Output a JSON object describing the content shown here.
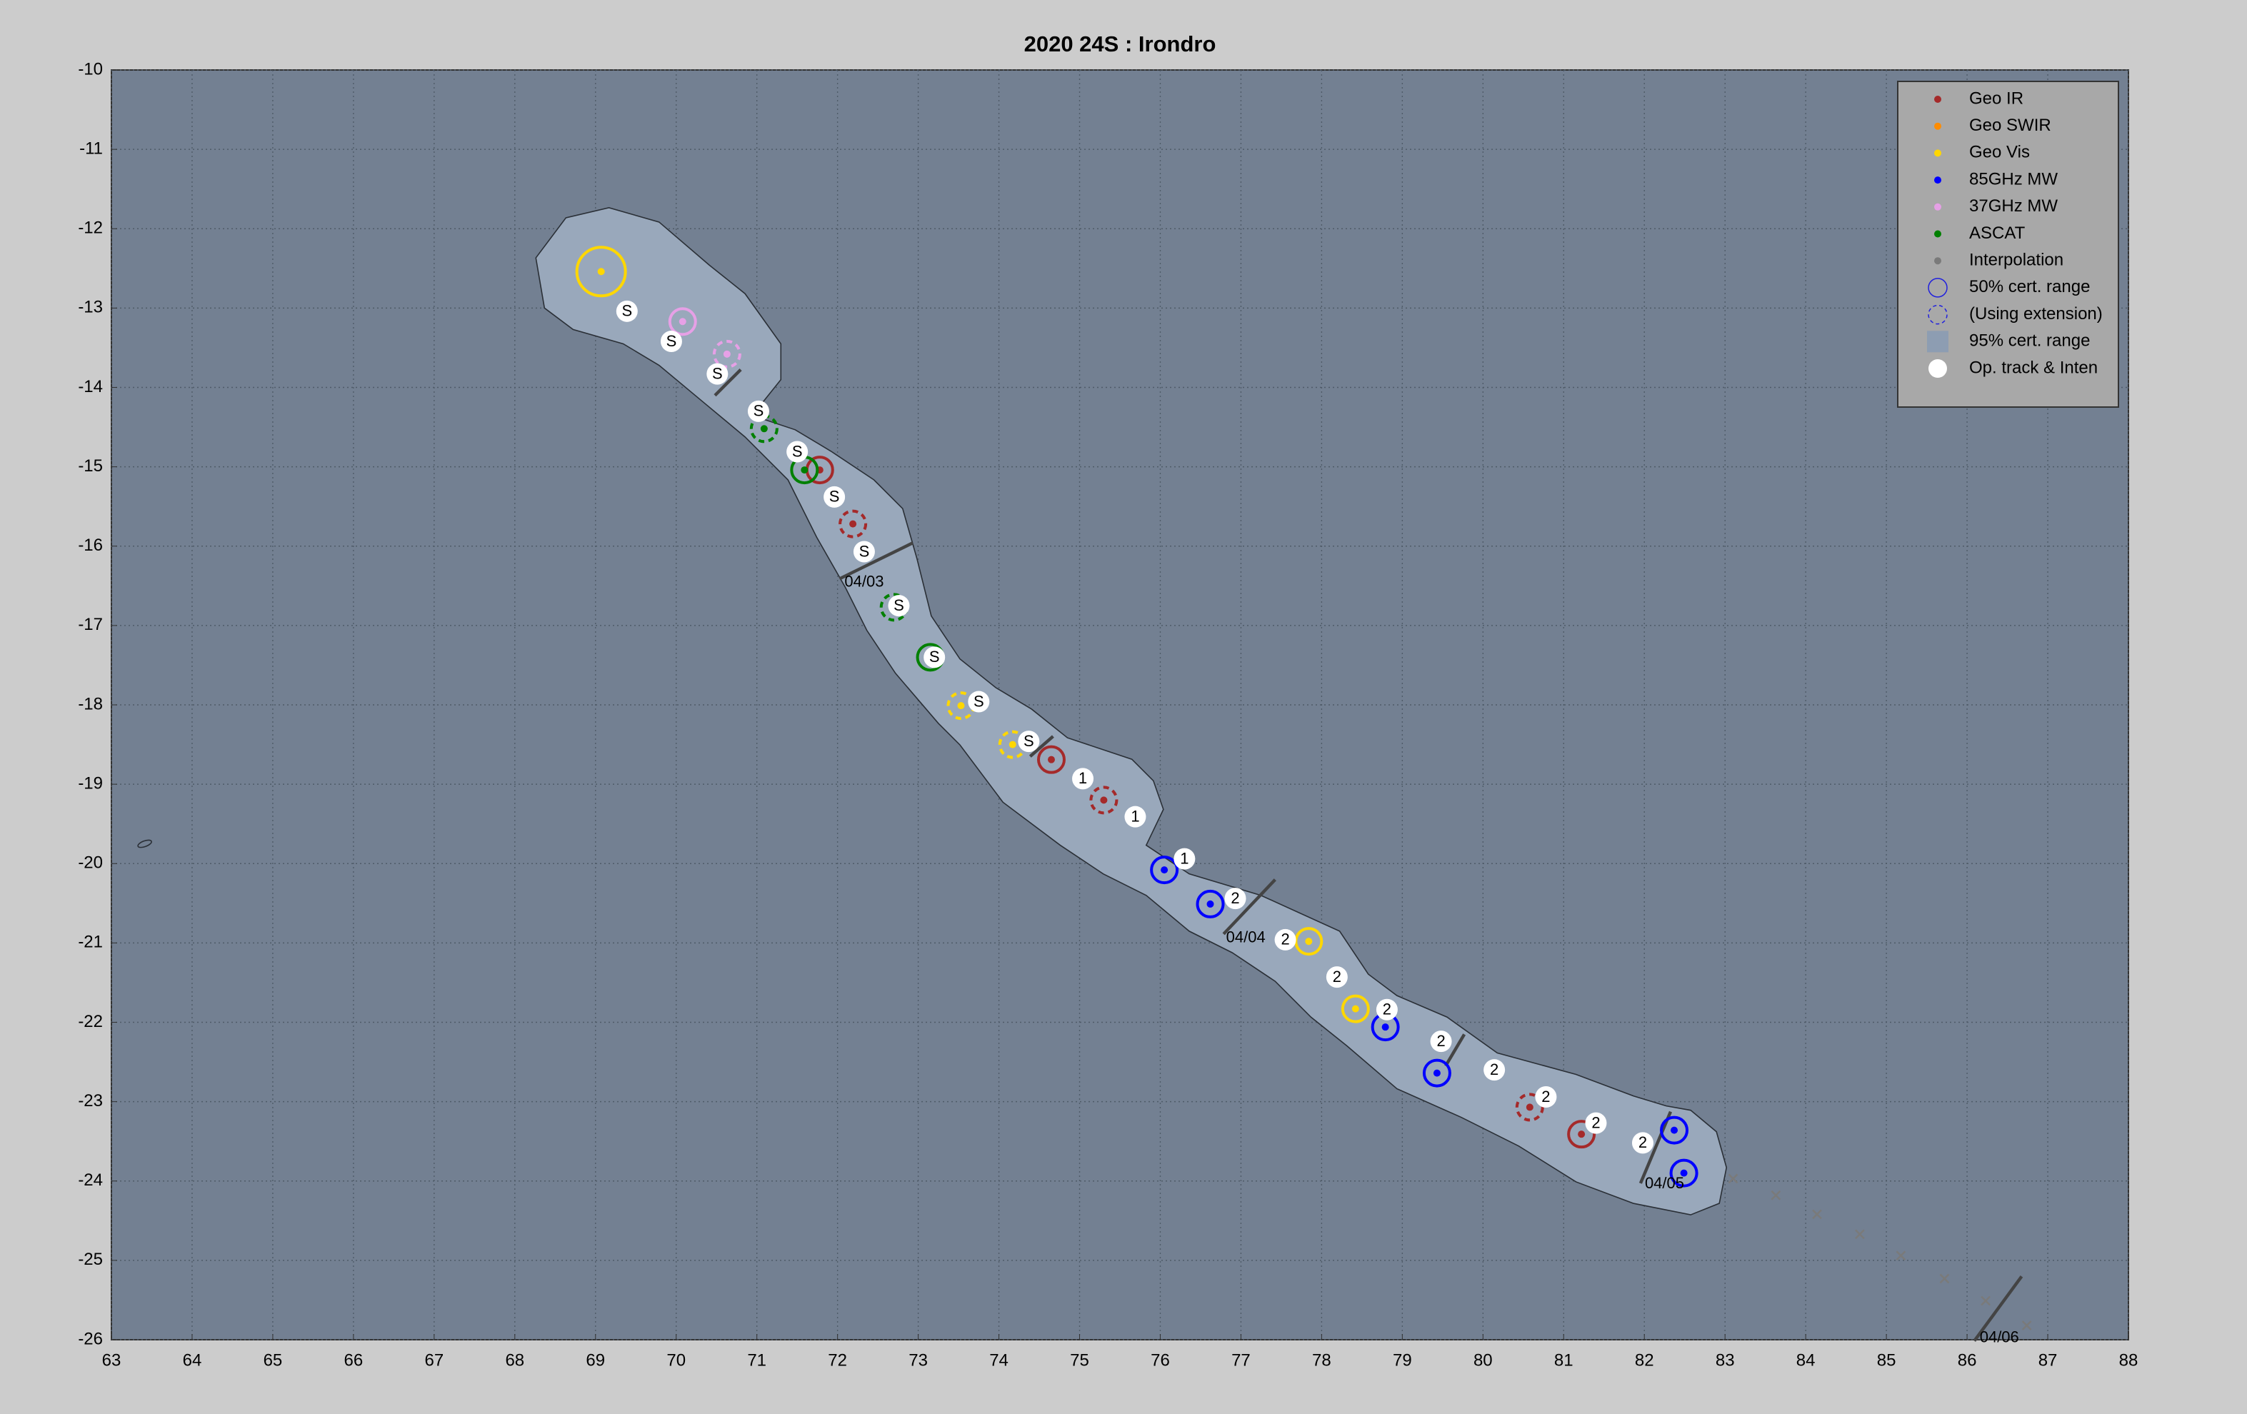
{
  "chart_data": {
    "type": "scatter",
    "title": "2020  24S :  Irondro",
    "xlim": [
      63,
      88
    ],
    "xticks": [
      63,
      64,
      65,
      66,
      67,
      68,
      69,
      70,
      71,
      72,
      73,
      74,
      75,
      76,
      77,
      78,
      79,
      80,
      81,
      82,
      83,
      84,
      85,
      86,
      87,
      88
    ],
    "ylim": [
      -26,
      -10
    ],
    "yticks": [
      -10,
      -11,
      -12,
      -13,
      -14,
      -15,
      -16,
      -17,
      -18,
      -19,
      -20,
      -21,
      -22,
      -23,
      -24,
      -25,
      -26
    ],
    "grid": true,
    "legend": "upper right",
    "series": [
      {
        "name": "Geo IR",
        "color": "#a52a2a",
        "marker": "circle",
        "x": [
          71.78,
          72.19,
          74.65,
          75.3,
          80.58,
          81.22
        ],
        "y": [
          -15.04,
          -15.72,
          -18.69,
          -19.2,
          -23.07,
          -23.41
        ],
        "extension": [
          false,
          true,
          false,
          true,
          true,
          false
        ]
      },
      {
        "name": "Geo SWIR",
        "color": "#ff8c00",
        "marker": "circle",
        "x": [],
        "y": [],
        "extension": []
      },
      {
        "name": "Geo Vis",
        "color": "#ffd700",
        "marker": "circle",
        "x": [
          69.07,
          73.53,
          74.17,
          77.84,
          78.42
        ],
        "y": [
          -12.54,
          -18.01,
          -18.5,
          -20.98,
          -21.83
        ],
        "extension": [
          false,
          true,
          true,
          false,
          false
        ]
      },
      {
        "name": "85GHz MW",
        "color": "#0000ff",
        "marker": "circle",
        "x": [
          76.05,
          76.62,
          78.79,
          79.43,
          82.37,
          82.49
        ],
        "y": [
          -20.08,
          -20.51,
          -22.06,
          -22.64,
          -23.36,
          -23.9
        ],
        "extension": [
          false,
          false,
          false,
          false,
          false,
          false
        ]
      },
      {
        "name": "37GHz MW",
        "color": "#e6a0e6",
        "marker": "circle",
        "x": [
          70.08,
          70.63
        ],
        "y": [
          -13.17,
          -13.58
        ],
        "extension": [
          false,
          true
        ]
      },
      {
        "name": "ASCAT",
        "color": "#008000",
        "marker": "circle",
        "x": [
          71.09,
          71.59,
          72.7,
          73.15
        ],
        "y": [
          -14.52,
          -15.04,
          -16.77,
          -17.4
        ],
        "extension": [
          true,
          false,
          true,
          false
        ]
      },
      {
        "name": "Interpolation",
        "color": "#7a7a7a",
        "marker": "x",
        "x": [
          83.1,
          83.63,
          84.14,
          84.67,
          85.18,
          85.72,
          86.23,
          86.74
        ],
        "y": [
          -23.97,
          -24.18,
          -24.42,
          -24.67,
          -24.94,
          -25.23,
          -25.51,
          -25.82
        ],
        "extension": [
          false,
          false,
          false,
          false,
          false,
          false,
          false,
          false
        ]
      }
    ],
    "legend_extra": [
      "50% cert. range",
      "(Using extension)",
      "95% cert. range"
    ],
    "track": {
      "name": "Op. track & Inten",
      "color": "#ffffff",
      "x": [
        69.39,
        69.94,
        70.51,
        71.02,
        71.5,
        71.96,
        72.33,
        72.76,
        73.2,
        73.75,
        74.37,
        75.04,
        75.69,
        76.3,
        76.93,
        77.55,
        78.19,
        78.81,
        79.48,
        80.14,
        80.78,
        81.4,
        81.98
      ],
      "y": [
        -13.04,
        -13.42,
        -13.83,
        -14.3,
        -14.81,
        -15.38,
        -16.07,
        -16.75,
        -17.4,
        -17.96,
        -18.46,
        -18.93,
        -19.41,
        -19.94,
        -20.44,
        -20.96,
        -21.43,
        -21.84,
        -22.24,
        -22.6,
        -22.94,
        -23.27,
        -23.52
      ],
      "labels": [
        "S",
        "S",
        "S",
        "S",
        "S",
        "S",
        "S",
        "S",
        "S",
        "S",
        "S",
        "1",
        "1",
        "1",
        "2",
        "2",
        "2",
        "2",
        "2",
        "2",
        "2",
        "2",
        "2"
      ]
    },
    "dates": {
      "labels": [
        "04/03",
        "04/04",
        "04/05",
        "04/06"
      ],
      "x": [
        72.33,
        77.06,
        82.25,
        86.4
      ],
      "y": [
        -16.46,
        -20.94,
        -24.04,
        -25.98
      ]
    }
  }
}
